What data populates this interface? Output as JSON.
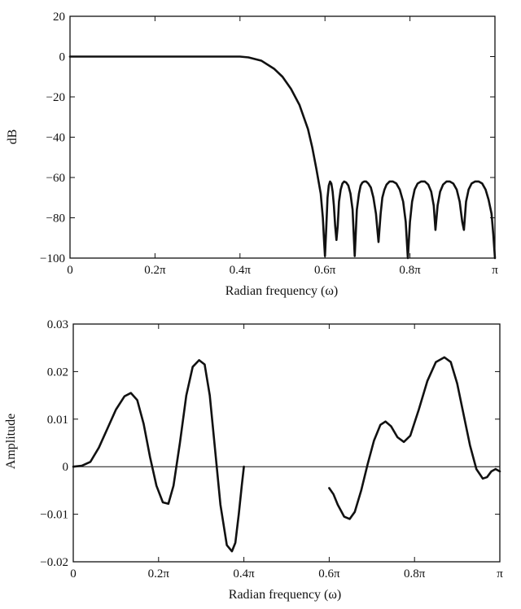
{
  "chart_data": [
    {
      "type": "line",
      "xlabel": "Radian frequency (ω)",
      "ylabel": "dB",
      "xlim": [
        0,
        1
      ],
      "x_unit": "π rad",
      "ylim": [
        -100,
        20
      ],
      "xticks": [
        0,
        0.2,
        0.4,
        0.6,
        0.8,
        1.0
      ],
      "xtick_labels": [
        "0",
        "0.2π",
        "0.4π",
        "0.6π",
        "0.8π",
        "π"
      ],
      "yticks": [
        20,
        0,
        -20,
        -40,
        -60,
        -80,
        -100
      ],
      "ytick_labels": [
        "20",
        "0",
        "−20",
        "−40",
        "−60",
        "−80",
        "−100"
      ],
      "series": [
        {
          "x": [
            0,
            0.1,
            0.2,
            0.3,
            0.38,
            0.4,
            0.42,
            0.45,
            0.48,
            0.5,
            0.52,
            0.54,
            0.56,
            0.57,
            0.58,
            0.59,
            0.595,
            0.598,
            0.6,
            0.603,
            0.606,
            0.609,
            0.612,
            0.615,
            0.618,
            0.621,
            0.624,
            0.627,
            0.63,
            0.633,
            0.637,
            0.641,
            0.645,
            0.65,
            0.655,
            0.66,
            0.665,
            0.67,
            0.675,
            0.68,
            0.684,
            0.688,
            0.692,
            0.697,
            0.702,
            0.708,
            0.714,
            0.72,
            0.726,
            0.731,
            0.735,
            0.74,
            0.745,
            0.752,
            0.76,
            0.768,
            0.776,
            0.784,
            0.79,
            0.795,
            0.8,
            0.805,
            0.811,
            0.818,
            0.826,
            0.835,
            0.843,
            0.85,
            0.856,
            0.86,
            0.865,
            0.871,
            0.878,
            0.886,
            0.894,
            0.902,
            0.91,
            0.917,
            0.923,
            0.927,
            0.932,
            0.938,
            0.945,
            0.953,
            0.962,
            0.97,
            0.978,
            0.985,
            0.992,
            0.996,
            1.0
          ],
          "y": [
            0,
            0,
            0,
            0,
            0,
            0,
            -0.4,
            -2,
            -6,
            -10,
            -16,
            -24,
            -36,
            -45,
            -56,
            -68,
            -80,
            -92,
            -99,
            -85,
            -70,
            -64,
            -62,
            -63,
            -67,
            -74,
            -84,
            -91,
            -84,
            -72,
            -66,
            -63,
            -62,
            -62.5,
            -64,
            -68,
            -76,
            -99,
            -76,
            -68,
            -64,
            -62.5,
            -62,
            -62,
            -63,
            -65,
            -70,
            -78,
            -92,
            -78,
            -70,
            -66,
            -63.5,
            -62,
            -62,
            -63,
            -66,
            -72,
            -82,
            -100,
            -82,
            -72,
            -66,
            -63,
            -62,
            -62,
            -63.5,
            -67,
            -74,
            -86,
            -74,
            -67,
            -63.5,
            -62,
            -62,
            -63,
            -66,
            -72,
            -82,
            -86,
            -72,
            -66,
            -63,
            -62,
            -62,
            -63,
            -66,
            -71,
            -78,
            -88,
            -100
          ]
        }
      ]
    },
    {
      "type": "line",
      "xlabel": "Radian frequency (ω)",
      "ylabel": "Amplitude",
      "xlim": [
        0,
        1
      ],
      "x_unit": "π rad",
      "ylim": [
        -0.02,
        0.03
      ],
      "xticks": [
        0,
        0.2,
        0.4,
        0.6,
        0.8,
        1.0
      ],
      "xtick_labels": [
        "0",
        "0.2π",
        "0.4π",
        "0.6π",
        "0.8π",
        "π"
      ],
      "yticks": [
        0.03,
        0.02,
        0.01,
        0,
        -0.01,
        -0.02
      ],
      "ytick_labels": [
        "0.03",
        "0.02",
        "0.01",
        "0",
        "−0.01",
        "−0.02"
      ],
      "series": [
        {
          "segments": [
            {
              "x": [
                0,
                0.02,
                0.04,
                0.06,
                0.08,
                0.1,
                0.12,
                0.135,
                0.15,
                0.165,
                0.18,
                0.195,
                0.21,
                0.223,
                0.235,
                0.25,
                0.265,
                0.28,
                0.295,
                0.308,
                0.32,
                0.332,
                0.345,
                0.36,
                0.372,
                0.38,
                0.388,
                0.395,
                0.4
              ],
              "y": [
                0,
                0.0002,
                0.001,
                0.004,
                0.008,
                0.012,
                0.0148,
                0.0155,
                0.014,
                0.009,
                0.002,
                -0.004,
                -0.0075,
                -0.0078,
                -0.004,
                0.005,
                0.015,
                0.021,
                0.0224,
                0.0215,
                0.015,
                0.004,
                -0.008,
                -0.0165,
                -0.0178,
                -0.016,
                -0.01,
                -0.004,
                0
              ]
            },
            {
              "x": [
                0.6,
                0.61,
                0.62,
                0.635,
                0.648,
                0.66,
                0.675,
                0.69,
                0.705,
                0.72,
                0.732,
                0.745,
                0.76,
                0.775,
                0.79,
                0.81,
                0.83,
                0.85,
                0.87,
                0.885,
                0.9,
                0.915,
                0.93,
                0.945,
                0.96,
                0.97,
                0.98,
                0.99,
                1.0
              ],
              "y": [
                -0.0045,
                -0.0058,
                -0.008,
                -0.0105,
                -0.011,
                -0.0095,
                -0.005,
                0.0005,
                0.0055,
                0.0088,
                0.0095,
                0.0085,
                0.0062,
                0.0052,
                0.0065,
                0.012,
                0.018,
                0.022,
                0.023,
                0.022,
                0.0175,
                0.011,
                0.0045,
                -0.0005,
                -0.0025,
                -0.0022,
                -0.001,
                -0.0005,
                -0.001
              ]
            }
          ]
        }
      ]
    }
  ]
}
